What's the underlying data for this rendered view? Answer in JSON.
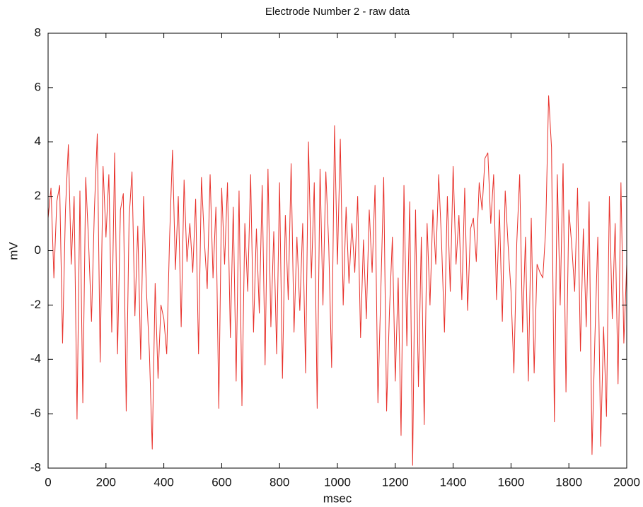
{
  "chart_data": {
    "type": "line",
    "title": "Electrode Number 2 - raw data",
    "x_label": "msec",
    "y_label": "mV",
    "x": [
      0,
      10,
      20,
      30,
      40,
      50,
      60,
      70,
      80,
      90,
      100,
      110,
      120,
      130,
      140,
      150,
      160,
      170,
      180,
      190,
      200,
      210,
      220,
      230,
      240,
      250,
      260,
      270,
      280,
      290,
      300,
      310,
      320,
      330,
      340,
      350,
      360,
      370,
      380,
      390,
      400,
      410,
      420,
      430,
      440,
      450,
      460,
      470,
      480,
      490,
      500,
      510,
      520,
      530,
      540,
      550,
      560,
      570,
      580,
      590,
      600,
      610,
      620,
      630,
      640,
      650,
      660,
      670,
      680,
      690,
      700,
      710,
      720,
      730,
      740,
      750,
      760,
      770,
      780,
      790,
      800,
      810,
      820,
      830,
      840,
      850,
      860,
      870,
      880,
      890,
      900,
      910,
      920,
      930,
      940,
      950,
      960,
      970,
      980,
      990,
      1000,
      1010,
      1020,
      1030,
      1040,
      1050,
      1060,
      1070,
      1080,
      1090,
      1100,
      1110,
      1120,
      1130,
      1140,
      1150,
      1160,
      1170,
      1180,
      1190,
      1200,
      1210,
      1220,
      1230,
      1240,
      1250,
      1260,
      1270,
      1280,
      1290,
      1300,
      1310,
      1320,
      1330,
      1340,
      1350,
      1360,
      1370,
      1380,
      1390,
      1400,
      1410,
      1420,
      1430,
      1440,
      1450,
      1460,
      1470,
      1480,
      1490,
      1500,
      1510,
      1520,
      1530,
      1540,
      1550,
      1560,
      1570,
      1580,
      1590,
      1600,
      1610,
      1620,
      1630,
      1640,
      1650,
      1660,
      1670,
      1680,
      1690,
      1700,
      1710,
      1720,
      1730,
      1740,
      1750,
      1760,
      1770,
      1780,
      1790,
      1800,
      1810,
      1820,
      1830,
      1840,
      1850,
      1860,
      1870,
      1880,
      1890,
      1900,
      1910,
      1920,
      1930,
      1940,
      1950,
      1960,
      1970,
      1980,
      1990,
      2000
    ],
    "series": [
      {
        "color": "#e8302a",
        "values": [
          1.2,
          2.3,
          -1.0,
          1.8,
          2.4,
          -3.4,
          1.5,
          3.9,
          -0.5,
          2.0,
          -6.2,
          2.2,
          -5.6,
          2.7,
          0.3,
          -2.6,
          1.5,
          4.3,
          -4.1,
          3.1,
          0.5,
          2.8,
          -3.0,
          3.6,
          -3.8,
          1.5,
          2.1,
          -5.9,
          1.2,
          2.9,
          -2.4,
          0.9,
          -4.0,
          2.0,
          -1.5,
          -3.7,
          -7.3,
          -1.2,
          -4.7,
          -2.0,
          -2.5,
          -3.8,
          0.5,
          3.7,
          -0.7,
          2.0,
          -2.8,
          2.6,
          -0.4,
          1.0,
          -0.8,
          1.9,
          -3.8,
          2.7,
          0.4,
          -1.4,
          2.8,
          -1.0,
          1.6,
          -5.8,
          2.3,
          -0.5,
          2.5,
          -3.2,
          1.6,
          -4.8,
          2.2,
          -5.7,
          1.0,
          -1.5,
          2.8,
          -3.0,
          0.8,
          -2.3,
          2.4,
          -4.2,
          3.0,
          -2.8,
          0.7,
          -3.8,
          2.5,
          -4.7,
          1.3,
          -1.8,
          3.2,
          -3.0,
          0.5,
          -2.2,
          1.0,
          -4.5,
          4.0,
          -1.0,
          2.5,
          -5.8,
          3.0,
          -2.0,
          2.9,
          0.2,
          -4.3,
          4.6,
          -0.5,
          4.1,
          -2.0,
          1.6,
          -1.2,
          1.0,
          -0.8,
          2.0,
          -3.2,
          0.4,
          -2.5,
          1.5,
          -0.8,
          2.4,
          -5.6,
          -1.5,
          2.7,
          -5.9,
          -2.2,
          0.5,
          -4.8,
          -1.0,
          -6.8,
          2.4,
          -3.5,
          1.8,
          -7.9,
          1.5,
          -5.0,
          0.5,
          -6.4,
          1.0,
          -2.0,
          1.5,
          -0.5,
          2.8,
          0.3,
          -3.0,
          2.0,
          -1.5,
          3.1,
          -0.5,
          1.3,
          -1.8,
          2.3,
          -2.2,
          0.8,
          1.2,
          -0.4,
          2.5,
          1.5,
          3.4,
          3.6,
          1.0,
          2.8,
          -1.8,
          1.5,
          -2.6,
          2.2,
          0.2,
          -1.5,
          -4.5,
          0.3,
          2.8,
          -3.0,
          0.5,
          -4.8,
          1.2,
          -4.5,
          -0.5,
          -0.8,
          -1.0,
          0.8,
          5.7,
          3.8,
          -6.3,
          2.8,
          -2.0,
          3.2,
          -5.2,
          1.5,
          0.2,
          -1.5,
          2.3,
          -3.7,
          0.8,
          -2.8,
          1.8,
          -7.5,
          -3.2,
          0.5,
          -7.2,
          -2.8,
          -6.1,
          2.0,
          -2.5,
          1.0,
          -4.9,
          2.5,
          -3.4,
          -0.5
        ]
      }
    ],
    "xlim": [
      0,
      2000
    ],
    "xticks": [
      0,
      200,
      400,
      600,
      800,
      1000,
      1200,
      1400,
      1600,
      1800,
      2000
    ],
    "ylim": [
      -8,
      8
    ],
    "yticks": [
      -8,
      -6,
      -4,
      -2,
      0,
      2,
      4,
      6,
      8
    ],
    "grid": false
  }
}
